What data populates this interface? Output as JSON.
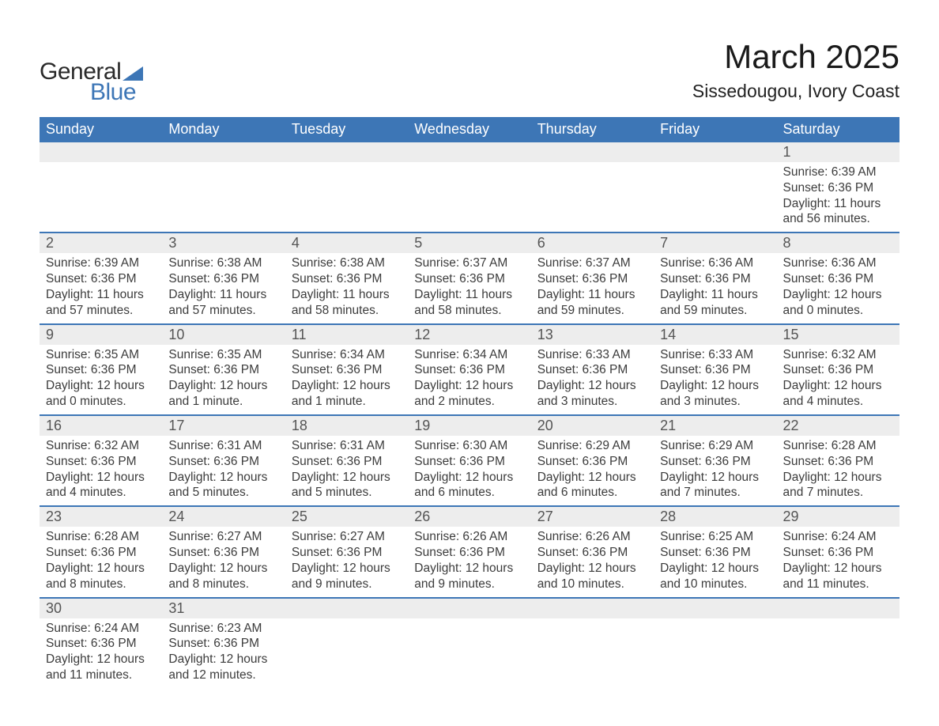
{
  "brand": {
    "word1": "General",
    "word2": "Blue",
    "text_color": "#2a2a2a",
    "accent_color": "#3d76b6"
  },
  "title": "March 2025",
  "location": "Sissedougou, Ivory Coast",
  "colors": {
    "header_bg": "#3d76b6",
    "header_text": "#ffffff",
    "row_divider": "#3d76b6",
    "daynum_bg": "#ededed",
    "page_bg": "#ffffff",
    "body_text": "#3c3c3c"
  },
  "typography": {
    "title_fontsize_pt": 32,
    "location_fontsize_pt": 17,
    "weekday_fontsize_pt": 14,
    "daynum_fontsize_pt": 14,
    "body_fontsize_pt": 12,
    "font_family": "Arial"
  },
  "layout": {
    "columns": 7,
    "rows": 6,
    "first_weekday": "Sunday",
    "leading_blanks": 6
  },
  "weekdays": [
    "Sunday",
    "Monday",
    "Tuesday",
    "Wednesday",
    "Thursday",
    "Friday",
    "Saturday"
  ],
  "days": [
    {
      "n": 1,
      "sunrise": "6:39 AM",
      "sunset": "6:36 PM",
      "daylight": "11 hours and 56 minutes."
    },
    {
      "n": 2,
      "sunrise": "6:39 AM",
      "sunset": "6:36 PM",
      "daylight": "11 hours and 57 minutes."
    },
    {
      "n": 3,
      "sunrise": "6:38 AM",
      "sunset": "6:36 PM",
      "daylight": "11 hours and 57 minutes."
    },
    {
      "n": 4,
      "sunrise": "6:38 AM",
      "sunset": "6:36 PM",
      "daylight": "11 hours and 58 minutes."
    },
    {
      "n": 5,
      "sunrise": "6:37 AM",
      "sunset": "6:36 PM",
      "daylight": "11 hours and 58 minutes."
    },
    {
      "n": 6,
      "sunrise": "6:37 AM",
      "sunset": "6:36 PM",
      "daylight": "11 hours and 59 minutes."
    },
    {
      "n": 7,
      "sunrise": "6:36 AM",
      "sunset": "6:36 PM",
      "daylight": "11 hours and 59 minutes."
    },
    {
      "n": 8,
      "sunrise": "6:36 AM",
      "sunset": "6:36 PM",
      "daylight": "12 hours and 0 minutes."
    },
    {
      "n": 9,
      "sunrise": "6:35 AM",
      "sunset": "6:36 PM",
      "daylight": "12 hours and 0 minutes."
    },
    {
      "n": 10,
      "sunrise": "6:35 AM",
      "sunset": "6:36 PM",
      "daylight": "12 hours and 1 minute."
    },
    {
      "n": 11,
      "sunrise": "6:34 AM",
      "sunset": "6:36 PM",
      "daylight": "12 hours and 1 minute."
    },
    {
      "n": 12,
      "sunrise": "6:34 AM",
      "sunset": "6:36 PM",
      "daylight": "12 hours and 2 minutes."
    },
    {
      "n": 13,
      "sunrise": "6:33 AM",
      "sunset": "6:36 PM",
      "daylight": "12 hours and 3 minutes."
    },
    {
      "n": 14,
      "sunrise": "6:33 AM",
      "sunset": "6:36 PM",
      "daylight": "12 hours and 3 minutes."
    },
    {
      "n": 15,
      "sunrise": "6:32 AM",
      "sunset": "6:36 PM",
      "daylight": "12 hours and 4 minutes."
    },
    {
      "n": 16,
      "sunrise": "6:32 AM",
      "sunset": "6:36 PM",
      "daylight": "12 hours and 4 minutes."
    },
    {
      "n": 17,
      "sunrise": "6:31 AM",
      "sunset": "6:36 PM",
      "daylight": "12 hours and 5 minutes."
    },
    {
      "n": 18,
      "sunrise": "6:31 AM",
      "sunset": "6:36 PM",
      "daylight": "12 hours and 5 minutes."
    },
    {
      "n": 19,
      "sunrise": "6:30 AM",
      "sunset": "6:36 PM",
      "daylight": "12 hours and 6 minutes."
    },
    {
      "n": 20,
      "sunrise": "6:29 AM",
      "sunset": "6:36 PM",
      "daylight": "12 hours and 6 minutes."
    },
    {
      "n": 21,
      "sunrise": "6:29 AM",
      "sunset": "6:36 PM",
      "daylight": "12 hours and 7 minutes."
    },
    {
      "n": 22,
      "sunrise": "6:28 AM",
      "sunset": "6:36 PM",
      "daylight": "12 hours and 7 minutes."
    },
    {
      "n": 23,
      "sunrise": "6:28 AM",
      "sunset": "6:36 PM",
      "daylight": "12 hours and 8 minutes."
    },
    {
      "n": 24,
      "sunrise": "6:27 AM",
      "sunset": "6:36 PM",
      "daylight": "12 hours and 8 minutes."
    },
    {
      "n": 25,
      "sunrise": "6:27 AM",
      "sunset": "6:36 PM",
      "daylight": "12 hours and 9 minutes."
    },
    {
      "n": 26,
      "sunrise": "6:26 AM",
      "sunset": "6:36 PM",
      "daylight": "12 hours and 9 minutes."
    },
    {
      "n": 27,
      "sunrise": "6:26 AM",
      "sunset": "6:36 PM",
      "daylight": "12 hours and 10 minutes."
    },
    {
      "n": 28,
      "sunrise": "6:25 AM",
      "sunset": "6:36 PM",
      "daylight": "12 hours and 10 minutes."
    },
    {
      "n": 29,
      "sunrise": "6:24 AM",
      "sunset": "6:36 PM",
      "daylight": "12 hours and 11 minutes."
    },
    {
      "n": 30,
      "sunrise": "6:24 AM",
      "sunset": "6:36 PM",
      "daylight": "12 hours and 11 minutes."
    },
    {
      "n": 31,
      "sunrise": "6:23 AM",
      "sunset": "6:36 PM",
      "daylight": "12 hours and 12 minutes."
    }
  ],
  "labels": {
    "sunrise": "Sunrise:",
    "sunset": "Sunset:",
    "daylight": "Daylight:"
  }
}
